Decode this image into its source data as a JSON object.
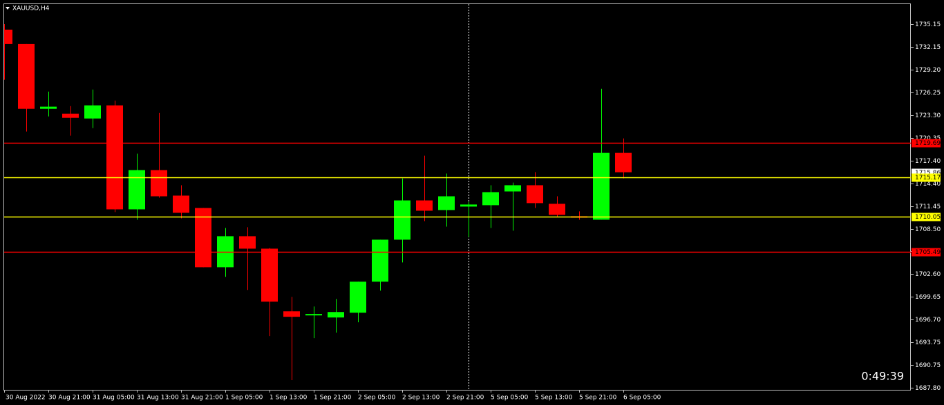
{
  "chart_data": {
    "type": "candlestick",
    "title": "XAUUSD,H4",
    "timer": "0:49:39",
    "categories": [
      "30 Aug 2022",
      null,
      "30 Aug 21:00",
      null,
      "31 Aug 05:00",
      null,
      "31 Aug 13:00",
      null,
      "31 Aug 21:00",
      null,
      "1 Sep 05:00",
      null,
      "1 Sep 13:00",
      null,
      "1 Sep 21:00",
      null,
      "2 Sep 05:00",
      null,
      "2 Sep 13:00",
      null,
      "2 Sep 21:00",
      null,
      "5 Sep 05:00",
      null,
      "5 Sep 13:00",
      null,
      "5 Sep 21:00",
      null,
      "6 Sep 05:00"
    ],
    "open": [
      1734.43,
      1732.55,
      1724.12,
      1723.49,
      1722.86,
      1724.57,
      1711.03,
      1716.14,
      1712.82,
      1711.21,
      1703.49,
      1707.53,
      1705.91,
      1697.75,
      1697.22,
      1696.95,
      1697.57,
      1701.61,
      1707.08,
      1712.19,
      1710.94,
      1711.39,
      1711.57,
      1713.36,
      1714.17,
      1711.75,
      1710.13,
      1709.68,
      1718.38
    ],
    "high": [
      1735.15,
      1732.55,
      1726.36,
      1724.48,
      1726.63,
      1725.2,
      1718.29,
      1723.58,
      1714.17,
      1711.21,
      1708.61,
      1708.7,
      1706.0,
      1699.64,
      1698.38,
      1699.37,
      1701.61,
      1707.08,
      1715.06,
      1718.02,
      1715.69,
      1712.0,
      1714.17,
      1714.52,
      1715.87,
      1712.73,
      1710.76,
      1726.72,
      1720.26
    ],
    "low": [
      1727.9,
      1721.16,
      1723.13,
      1720.62,
      1721.61,
      1710.67,
      1709.68,
      1712.55,
      1709.86,
      1703.49,
      1702.24,
      1700.53,
      1694.53,
      1688.79,
      1694.26,
      1694.97,
      1696.32,
      1700.44,
      1704.12,
      1709.5,
      1708.78,
      1707.44,
      1708.61,
      1708.25,
      1711.21,
      1710.04,
      1709.68,
      1709.68,
      1715.06
    ],
    "close": [
      1732.55,
      1724.12,
      1724.4,
      1722.95,
      1724.57,
      1711.03,
      1716.14,
      1712.73,
      1710.58,
      1703.49,
      1707.53,
      1705.91,
      1699.01,
      1697.04,
      1697.4,
      1697.66,
      1701.61,
      1707.08,
      1712.19,
      1710.85,
      1712.73,
      1711.66,
      1713.27,
      1714.17,
      1711.84,
      1710.31,
      1709.95,
      1718.38,
      1715.86
    ],
    "up_color": "#00ff00",
    "down_color": "#ff0000",
    "ylim": [
      1687.53,
      1737.75
    ],
    "yticks": [
      1735.15,
      1732.15,
      {
        "value": 1729.2,
        "label": "1729.20"
      },
      1726.25,
      {
        "value": 1723.3,
        "label": "1723.30"
      },
      1720.35,
      {
        "value": 1717.4,
        "label": "1717.40"
      },
      {
        "value": 1714.4,
        "label": "1714.40"
      },
      1711.45,
      {
        "value": 1708.5,
        "label": "1708.50"
      },
      1705.55,
      {
        "value": 1702.6,
        "label": "1702.60"
      },
      1699.65,
      {
        "value": 1696.7,
        "label": "1696.70"
      },
      1693.75,
      1690.75,
      {
        "value": 1687.8,
        "label": "1687.80"
      }
    ],
    "current_price": 1715.86,
    "levels": [
      {
        "value": 1719.69,
        "color": "#ff0000"
      },
      {
        "value": 1715.17,
        "color": "#ffff00"
      },
      {
        "value": 1710.05,
        "color": "#ffff00"
      },
      {
        "value": 1705.49,
        "color": "#ff0000"
      }
    ]
  }
}
